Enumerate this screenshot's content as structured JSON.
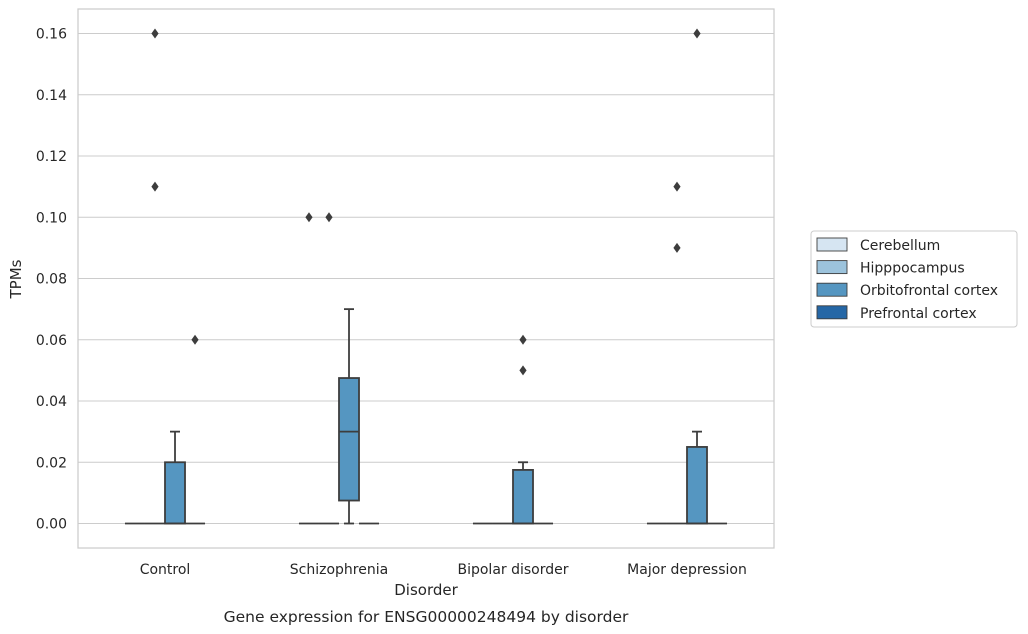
{
  "chart_data": {
    "type": "box",
    "categories": [
      "Control",
      "Schizophrenia",
      "Bipolar disorder",
      "Major depression"
    ],
    "xlabel": "Disorder",
    "ylabel": "TPMs",
    "caption": "Gene expression for ENSG00000248494 by disorder",
    "ylim": [
      -0.008,
      0.168
    ],
    "yticks": [
      0.0,
      0.02,
      0.04,
      0.06,
      0.08,
      0.1,
      0.12,
      0.14,
      0.16
    ],
    "ytick_labels": [
      "0.00",
      "0.02",
      "0.04",
      "0.06",
      "0.08",
      "0.10",
      "0.12",
      "0.14",
      "0.16"
    ],
    "grid": "horizontal",
    "legend_position": "right",
    "series": [
      {
        "name": "Cerebellum",
        "color": "#d6e5f2",
        "boxes": [
          {
            "q1": 0,
            "median": 0,
            "q3": 0,
            "whisker_low": 0,
            "whisker_high": 0,
            "outliers": []
          },
          {
            "q1": 0,
            "median": 0,
            "q3": 0,
            "whisker_low": 0,
            "whisker_high": 0,
            "outliers": [
              0.1
            ]
          },
          {
            "q1": 0,
            "median": 0,
            "q3": 0,
            "whisker_low": 0,
            "whisker_high": 0,
            "outliers": []
          },
          {
            "q1": 0,
            "median": 0,
            "q3": 0,
            "whisker_low": 0,
            "whisker_high": 0,
            "outliers": []
          }
        ]
      },
      {
        "name": "Hipppocampus",
        "color": "#9cc3dc",
        "boxes": [
          {
            "q1": 0,
            "median": 0,
            "q3": 0,
            "whisker_low": 0,
            "whisker_high": 0,
            "outliers": [
              0.16,
              0.11
            ]
          },
          {
            "q1": 0,
            "median": 0,
            "q3": 0,
            "whisker_low": 0,
            "whisker_high": 0,
            "outliers": [
              0.1
            ]
          },
          {
            "q1": 0,
            "median": 0,
            "q3": 0,
            "whisker_low": 0,
            "whisker_high": 0,
            "outliers": []
          },
          {
            "q1": 0,
            "median": 0,
            "q3": 0,
            "whisker_low": 0,
            "whisker_high": 0,
            "outliers": [
              0.11,
              0.09
            ]
          }
        ]
      },
      {
        "name": "Orbitofrontal cortex",
        "color": "#5596c1",
        "boxes": [
          {
            "q1": 0,
            "median": 0,
            "q3": 0.02,
            "whisker_low": 0,
            "whisker_high": 0.03,
            "outliers": []
          },
          {
            "q1": 0.0075,
            "median": 0.03,
            "q3": 0.0475,
            "whisker_low": 0,
            "whisker_high": 0.07,
            "outliers": []
          },
          {
            "q1": 0,
            "median": 0,
            "q3": 0.0175,
            "whisker_low": 0,
            "whisker_high": 0.02,
            "outliers": [
              0.06,
              0.05
            ]
          },
          {
            "q1": 0,
            "median": 0,
            "q3": 0.025,
            "whisker_low": 0,
            "whisker_high": 0.03,
            "outliers": [
              0.16
            ]
          }
        ]
      },
      {
        "name": "Prefrontal cortex",
        "color": "#2567a6",
        "boxes": [
          {
            "q1": 0,
            "median": 0,
            "q3": 0,
            "whisker_low": 0,
            "whisker_high": 0,
            "outliers": [
              0.06
            ]
          },
          {
            "q1": 0,
            "median": 0,
            "q3": 0,
            "whisker_low": 0,
            "whisker_high": 0,
            "outliers": []
          },
          {
            "q1": 0,
            "median": 0,
            "q3": 0,
            "whisker_low": 0,
            "whisker_high": 0,
            "outliers": []
          },
          {
            "q1": 0,
            "median": 0,
            "q3": 0,
            "whisker_low": 0,
            "whisker_high": 0,
            "outliers": []
          }
        ]
      }
    ]
  }
}
